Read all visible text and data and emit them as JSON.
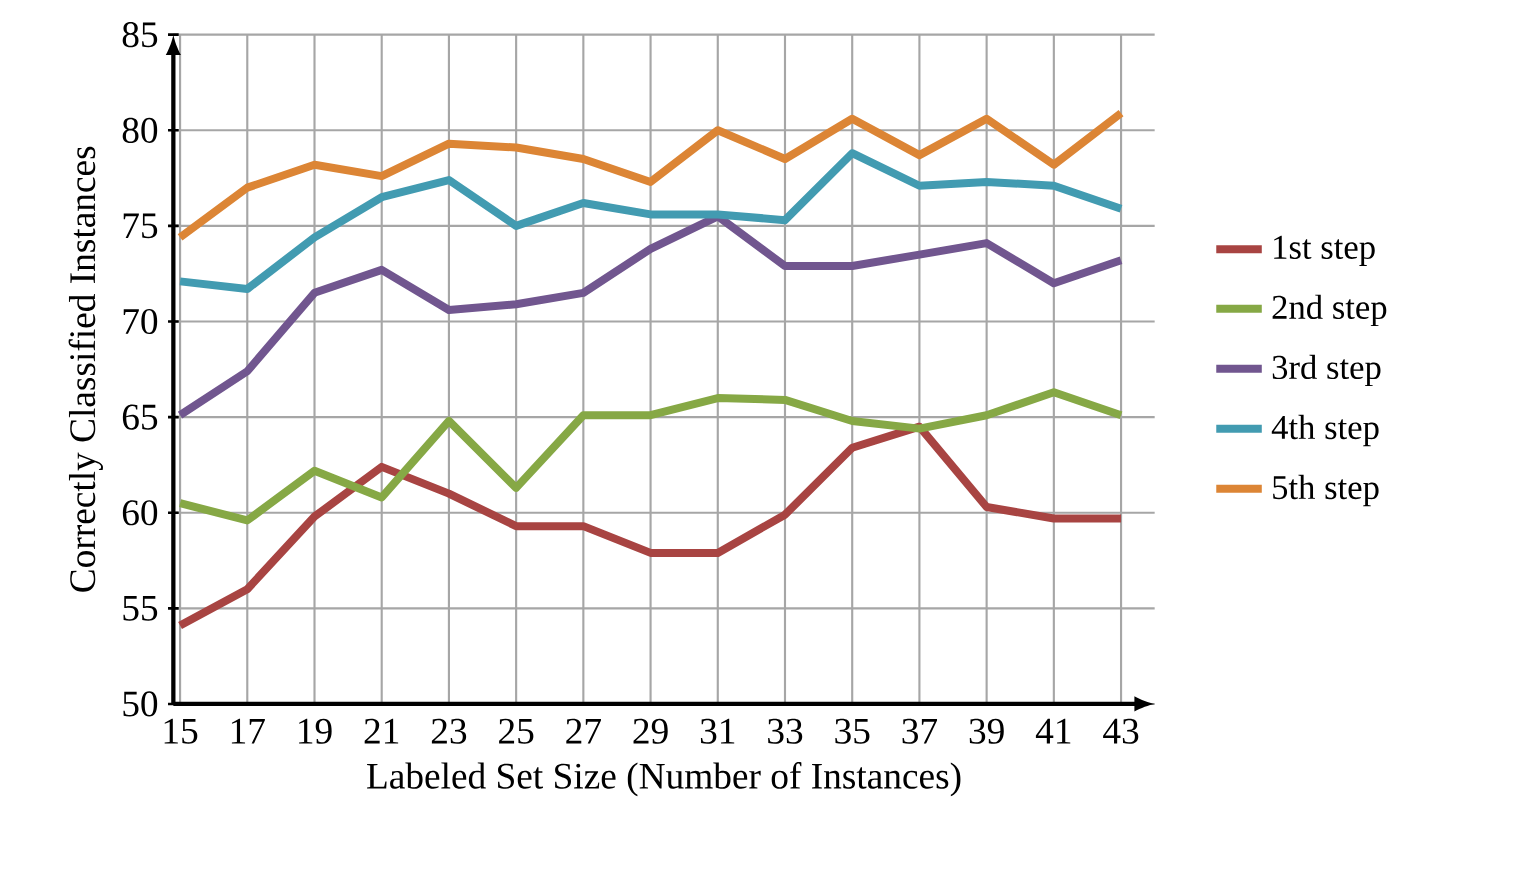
{
  "chart_data": {
    "type": "line",
    "xlabel": "Labeled Set Size (Number of Instances)",
    "ylabel": "Correctly Classified Instances",
    "x": [
      15,
      17,
      19,
      21,
      23,
      25,
      27,
      29,
      31,
      33,
      35,
      37,
      39,
      41,
      43
    ],
    "xlim": [
      14.8,
      44
    ],
    "xticks": [
      15,
      17,
      19,
      21,
      23,
      25,
      27,
      29,
      31,
      33,
      35,
      37,
      39,
      41,
      43
    ],
    "ylim": [
      50,
      85
    ],
    "yticks": [
      50,
      55,
      60,
      65,
      70,
      75,
      80,
      85
    ],
    "grid": true,
    "legend": "right",
    "marker": "none",
    "line_style": "solid",
    "series": [
      {
        "name": "1st step",
        "color": "#a84442",
        "values": [
          54.1,
          56.0,
          59.8,
          62.4,
          61.0,
          59.3,
          59.3,
          57.9,
          57.9,
          59.9,
          63.4,
          64.5,
          60.3,
          59.7,
          59.7
        ]
      },
      {
        "name": "2nd step",
        "color": "#86a845",
        "values": [
          60.5,
          59.6,
          62.2,
          60.8,
          64.8,
          61.3,
          65.1,
          65.1,
          66.0,
          65.9,
          64.8,
          64.4,
          65.1,
          66.3,
          65.1
        ]
      },
      {
        "name": "3rd step",
        "color": "#71568f",
        "values": [
          65.1,
          67.4,
          71.5,
          72.7,
          70.6,
          70.9,
          71.5,
          73.8,
          75.5,
          72.9,
          72.9,
          73.5,
          74.1,
          72.0,
          73.2
        ]
      },
      {
        "name": "4th step",
        "color": "#429bb1",
        "values": [
          72.1,
          71.7,
          74.4,
          76.5,
          77.4,
          75.0,
          76.2,
          75.6,
          75.6,
          75.3,
          78.8,
          77.1,
          77.3,
          77.1,
          75.9
        ]
      },
      {
        "name": "5th step",
        "color": "#dc8535",
        "values": [
          74.4,
          77.0,
          78.2,
          77.6,
          79.3,
          79.1,
          78.5,
          77.3,
          80.0,
          78.5,
          80.6,
          78.7,
          80.6,
          78.2,
          80.9
        ]
      }
    ]
  }
}
